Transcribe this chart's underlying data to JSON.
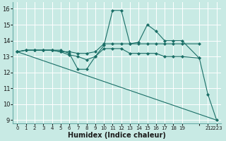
{
  "xlabel": "Humidex (Indice chaleur)",
  "bg_color": "#c8eae4",
  "grid_color": "#ffffff",
  "line_color": "#1a6e66",
  "xlim": [
    -0.5,
    23.5
  ],
  "ylim": [
    8.8,
    16.4
  ],
  "yticks": [
    9,
    10,
    11,
    12,
    13,
    14,
    15,
    16
  ],
  "xtick_positions": [
    0,
    1,
    2,
    3,
    4,
    5,
    6,
    7,
    8,
    9,
    10,
    11,
    12,
    13,
    14,
    15,
    16,
    17,
    18,
    19,
    21,
    22,
    23
  ],
  "xtick_labels": [
    "0",
    "1",
    "2",
    "3",
    "4",
    "5",
    "6",
    "7",
    "8",
    "9",
    "10",
    "11",
    "12",
    "13",
    "14",
    "15",
    "16",
    "17",
    "18",
    "19",
    " ",
    "21",
    "2223"
  ],
  "series": [
    {
      "x": [
        0,
        1,
        2,
        3,
        4,
        5,
        6,
        7,
        8,
        9,
        10,
        11,
        12,
        13,
        14,
        15,
        16,
        17,
        18,
        19,
        21,
        22,
        23
      ],
      "y": [
        13.3,
        13.4,
        13.4,
        13.4,
        13.4,
        13.4,
        13.2,
        12.2,
        12.2,
        13.0,
        13.7,
        15.9,
        15.9,
        13.8,
        13.9,
        15.0,
        14.6,
        14.0,
        14.0,
        14.0,
        12.9,
        10.6,
        9.0
      ],
      "has_markers": true
    },
    {
      "x": [
        0,
        1,
        2,
        3,
        4,
        5,
        6,
        7,
        8,
        9,
        10,
        11,
        12,
        13,
        14,
        15,
        16,
        17,
        18,
        19,
        21
      ],
      "y": [
        13.3,
        13.4,
        13.4,
        13.4,
        13.4,
        13.3,
        13.1,
        13.0,
        12.8,
        13.0,
        13.5,
        13.5,
        13.5,
        13.2,
        13.2,
        13.2,
        13.2,
        13.0,
        13.0,
        13.0,
        12.9
      ],
      "has_markers": true
    },
    {
      "x": [
        0,
        1,
        2,
        3,
        4,
        5,
        6,
        7,
        8,
        9,
        10,
        11,
        12,
        13,
        14,
        15,
        16,
        17,
        18,
        19,
        21
      ],
      "y": [
        13.3,
        13.4,
        13.4,
        13.4,
        13.4,
        13.3,
        13.3,
        13.2,
        13.2,
        13.3,
        13.8,
        13.8,
        13.8,
        13.8,
        13.8,
        13.8,
        13.8,
        13.8,
        13.8,
        13.8,
        13.8
      ],
      "has_markers": true
    },
    {
      "x": [
        0,
        23
      ],
      "y": [
        13.3,
        9.0
      ],
      "has_markers": false
    }
  ]
}
